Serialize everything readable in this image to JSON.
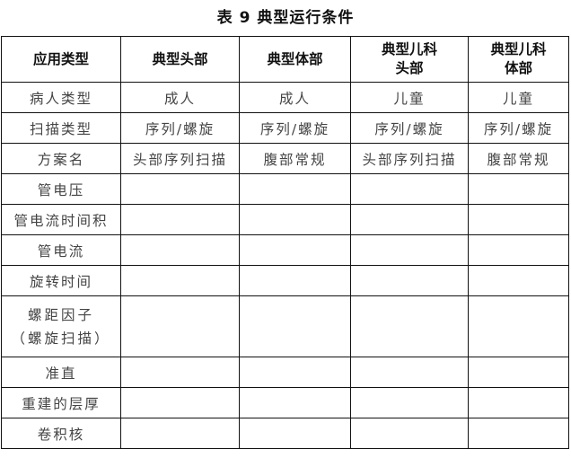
{
  "title": "表 9  典型运行条件",
  "table": {
    "headers": [
      "应用类型",
      "典型头部",
      "典型体部",
      "典型儿科\n头部",
      "典型儿科\n体部"
    ],
    "rows": [
      [
        "病人类型",
        "成人",
        "成人",
        "儿童",
        "儿童"
      ],
      [
        "扫描类型",
        "序列/螺旋",
        "序列/螺旋",
        "序列/螺旋",
        "序列/螺旋"
      ],
      [
        "方案名",
        "头部序列扫描",
        "腹部常规",
        "头部序列扫描",
        "腹部常规"
      ],
      [
        "管电压",
        "",
        "",
        "",
        ""
      ],
      [
        "管电流时间积",
        "",
        "",
        "",
        ""
      ],
      [
        "管电流",
        "",
        "",
        "",
        ""
      ],
      [
        "旋转时间",
        "",
        "",
        "",
        ""
      ],
      [
        "螺距因子\n（螺旋扫描）",
        "",
        "",
        "",
        ""
      ],
      [
        "准直",
        "",
        "",
        "",
        ""
      ],
      [
        "重建的层厚",
        "",
        "",
        "",
        ""
      ],
      [
        "卷积核",
        "",
        "",
        "",
        ""
      ]
    ]
  }
}
